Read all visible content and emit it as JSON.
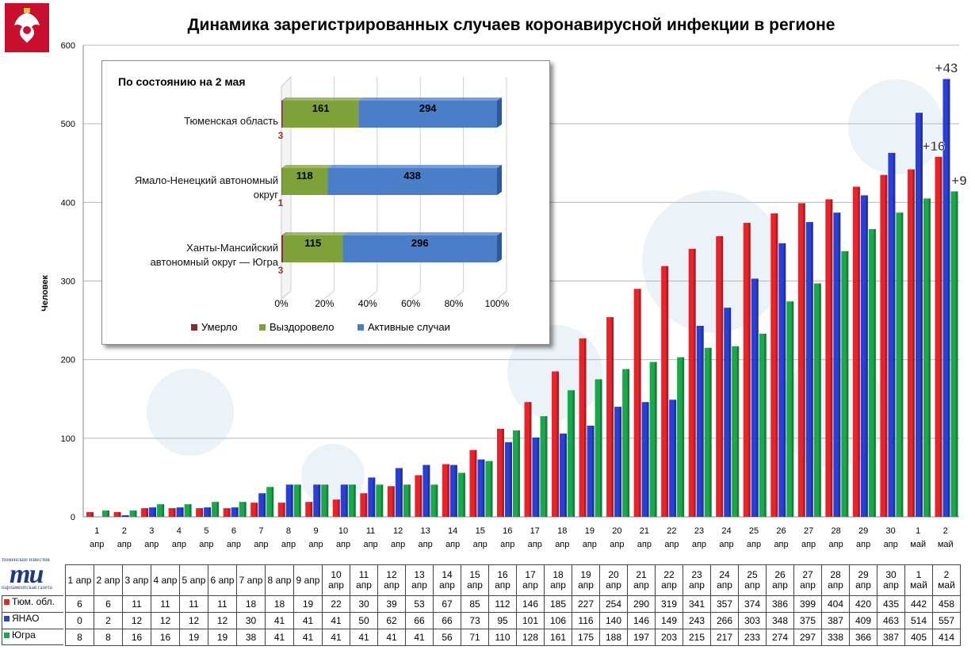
{
  "page": {
    "title": "Динамика зарегистрированных случаев коронавирусной инфекции  в регионе",
    "logo": {
      "top_text": "тюменские известия",
      "mark": "ти",
      "bottom_text": "парламентская газета"
    }
  },
  "chart_data": [
    {
      "type": "bar",
      "title": "Динамика зарегистрированных случаев коронавирусной инфекции  в регионе",
      "ylabel": "Человек",
      "xlabel": "",
      "ylim": [
        0,
        600
      ],
      "yticks": [
        0,
        100,
        200,
        300,
        400,
        500,
        600
      ],
      "grid": true,
      "categories": [
        {
          "day": "1",
          "month": "апр"
        },
        {
          "day": "2",
          "month": "апр"
        },
        {
          "day": "3",
          "month": "апр"
        },
        {
          "day": "4",
          "month": "апр"
        },
        {
          "day": "5",
          "month": "апр"
        },
        {
          "day": "6",
          "month": "апр"
        },
        {
          "day": "7",
          "month": "апр"
        },
        {
          "day": "8",
          "month": "апр"
        },
        {
          "day": "9",
          "month": "апр"
        },
        {
          "day": "10",
          "month": "апр"
        },
        {
          "day": "11",
          "month": "апр"
        },
        {
          "day": "12",
          "month": "апр"
        },
        {
          "day": "13",
          "month": "апр"
        },
        {
          "day": "14",
          "month": "апр"
        },
        {
          "day": "15",
          "month": "апр"
        },
        {
          "day": "16",
          "month": "апр"
        },
        {
          "day": "17",
          "month": "апр"
        },
        {
          "day": "18",
          "month": "апр"
        },
        {
          "day": "19",
          "month": "апр"
        },
        {
          "day": "20",
          "month": "апр"
        },
        {
          "day": "21",
          "month": "апр"
        },
        {
          "day": "22",
          "month": "апр"
        },
        {
          "day": "23",
          "month": "апр"
        },
        {
          "day": "24",
          "month": "апр"
        },
        {
          "day": "25",
          "month": "апр"
        },
        {
          "day": "26",
          "month": "апр"
        },
        {
          "day": "27",
          "month": "апр"
        },
        {
          "day": "28",
          "month": "апр"
        },
        {
          "day": "29",
          "month": "апр"
        },
        {
          "day": "30",
          "month": "апр"
        },
        {
          "day": "1",
          "month": "май"
        },
        {
          "day": "2",
          "month": "май"
        }
      ],
      "series": [
        {
          "name": "Тюм. обл.",
          "color": "#e8232a",
          "values": [
            6,
            6,
            11,
            11,
            11,
            11,
            18,
            18,
            19,
            22,
            30,
            39,
            53,
            67,
            85,
            112,
            146,
            185,
            227,
            254,
            290,
            319,
            341,
            357,
            374,
            386,
            399,
            404,
            420,
            435,
            442,
            458
          ]
        },
        {
          "name": "ЯНАО",
          "color": "#2a3fd6",
          "values": [
            0,
            2,
            12,
            12,
            12,
            12,
            30,
            41,
            41,
            41,
            50,
            62,
            66,
            66,
            73,
            95,
            101,
            106,
            116,
            140,
            146,
            149,
            243,
            266,
            303,
            348,
            375,
            387,
            409,
            463,
            514,
            557
          ]
        },
        {
          "name": "Югра",
          "color": "#1aa84a",
          "values": [
            8,
            8,
            16,
            16,
            19,
            19,
            38,
            41,
            41,
            41,
            41,
            41,
            41,
            56,
            71,
            110,
            128,
            161,
            175,
            188,
            197,
            203,
            215,
            217,
            233,
            274,
            297,
            338,
            366,
            387,
            405,
            414
          ]
        }
      ],
      "annotations": [
        {
          "series": "ЯНАО",
          "category_index": 31,
          "text": "+43"
        },
        {
          "series": "Тюм. обл.",
          "category_index": 31,
          "text": "+16"
        },
        {
          "series": "Югра",
          "category_index": 31,
          "text": "+9"
        }
      ]
    },
    {
      "type": "bar",
      "orientation": "horizontal",
      "stacked": "percent",
      "title": "По состоянию на 2 мая",
      "xlim": [
        0,
        100
      ],
      "xticks": [
        "0%",
        "20%",
        "40%",
        "60%",
        "80%",
        "100%"
      ],
      "categories": [
        "Тюменская область",
        "Ямало-Ненецкий автономный округ",
        "Ханты-Мансийский автономный округ — Югра"
      ],
      "category_lines": [
        [
          "Тюменская область"
        ],
        [
          "Ямало-Ненецкий автономный",
          "округ"
        ],
        [
          "Ханты-Мансийский",
          "автономный округ — Югра"
        ]
      ],
      "legend": "bottom",
      "series": [
        {
          "name": "Умерло",
          "color": "#8b2a2a",
          "values": [
            3,
            1,
            3
          ]
        },
        {
          "name": "Выздоровело",
          "color": "#7ea13a",
          "values": [
            161,
            118,
            115
          ]
        },
        {
          "name": "Активные случаи",
          "color": "#4a7ec8",
          "values": [
            294,
            438,
            296
          ]
        }
      ]
    }
  ],
  "table": {
    "rows": [
      {
        "label": "Тюм. обл.",
        "color": "#e8232a"
      },
      {
        "label": "ЯНАО",
        "color": "#2a3fd6"
      },
      {
        "label": "Югра",
        "color": "#1aa84a"
      }
    ]
  }
}
